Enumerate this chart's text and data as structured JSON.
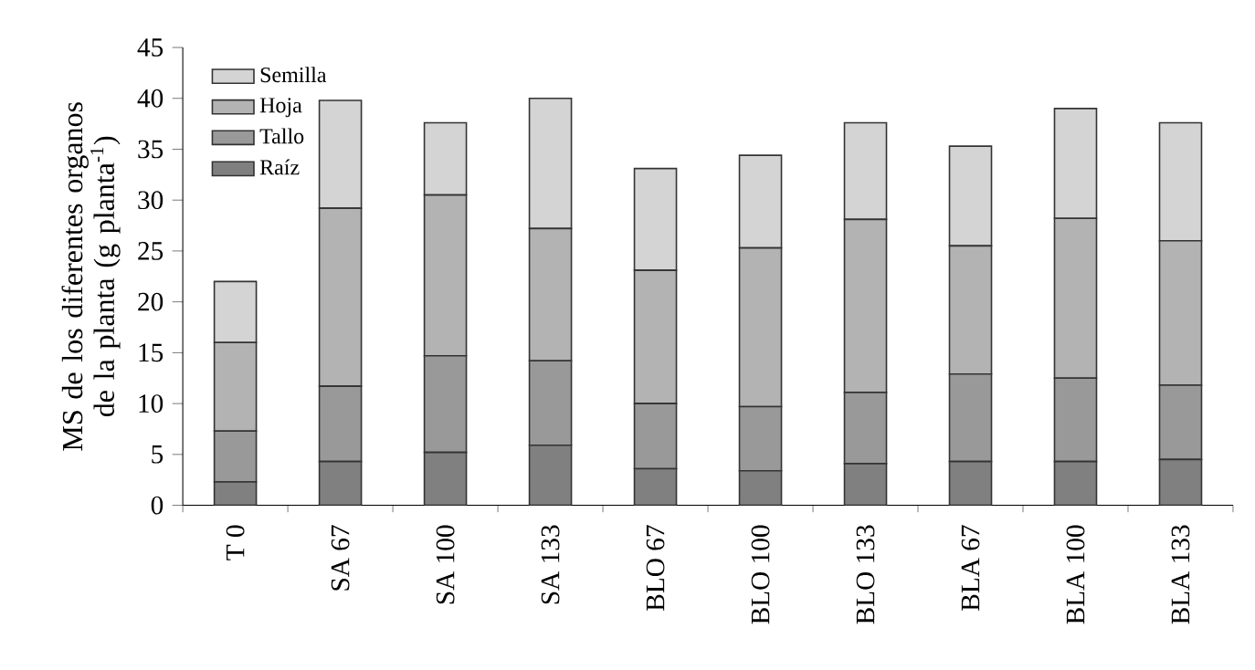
{
  "chart_data": {
    "type": "bar",
    "stacked": true,
    "ylabel": "MS de los diferentes organos de la planta (g planta$^{-1}$)",
    "categories": [
      "T 0",
      "SA 67",
      "SA 100",
      "SA 133",
      "BLO 67",
      "BLO 100",
      "BLO 133",
      "BLA 67",
      "BLA 100",
      "BLA 133"
    ],
    "series": [
      {
        "name": "Raíz",
        "color": "#808080",
        "values": [
          2.3,
          4.3,
          5.2,
          5.9,
          3.6,
          3.4,
          4.1,
          4.3,
          4.3,
          4.5
        ]
      },
      {
        "name": "Tallo",
        "color": "#999999",
        "values": [
          5.0,
          7.4,
          9.5,
          8.3,
          6.4,
          6.3,
          7.0,
          8.6,
          8.2,
          7.3
        ]
      },
      {
        "name": "Hoja",
        "color": "#b3b3b3",
        "values": [
          8.7,
          17.5,
          15.8,
          13.0,
          13.1,
          15.6,
          17.0,
          12.6,
          15.7,
          14.2
        ]
      },
      {
        "name": "Semilla",
        "color": "#d4d4d4",
        "values": [
          6.0,
          10.6,
          7.1,
          12.8,
          10.0,
          9.1,
          9.5,
          9.8,
          10.8,
          11.6
        ]
      }
    ],
    "ylim": [
      0,
      45
    ],
    "yticks": [
      0,
      5,
      10,
      15,
      20,
      25,
      30,
      35,
      40,
      45
    ],
    "legend": "top left",
    "grid": false
  }
}
